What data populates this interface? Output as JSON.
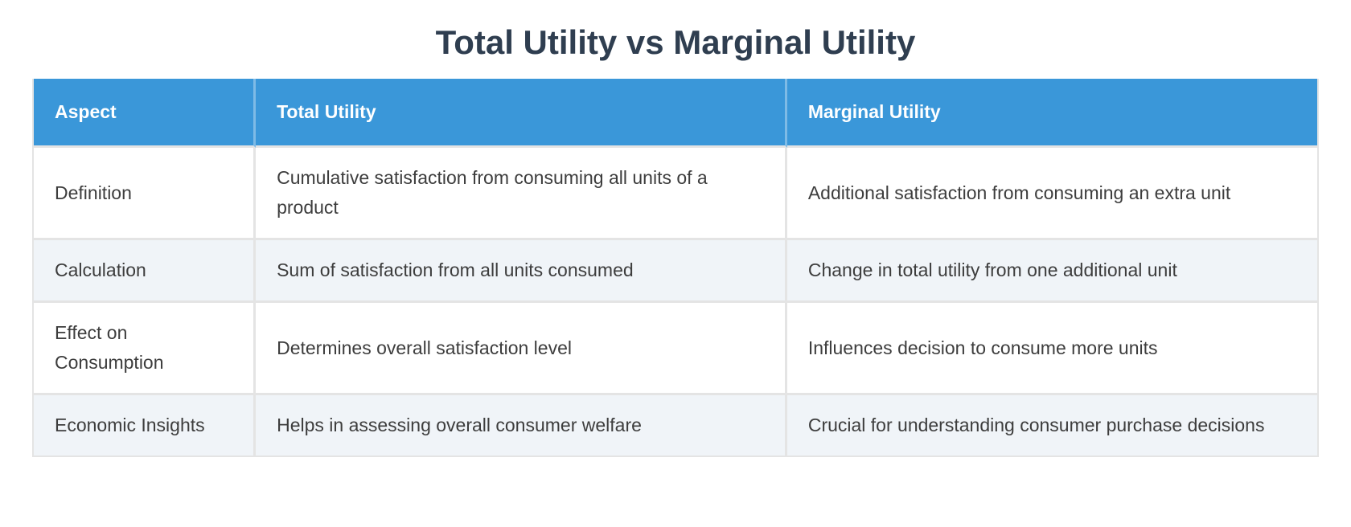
{
  "title": "Total Utility vs Marginal Utility",
  "table": {
    "columns": [
      "Aspect",
      "Total Utility",
      "Marginal Utility"
    ],
    "rows": [
      {
        "aspect": "Definition",
        "total_utility": "Cumulative satisfaction from consuming all units of a product",
        "marginal_utility": "Additional satisfaction from consuming an extra unit"
      },
      {
        "aspect": "Calculation",
        "total_utility": "Sum of satisfaction from all units consumed",
        "marginal_utility": "Change in total utility from one additional unit"
      },
      {
        "aspect": "Effect on Consumption",
        "total_utility": "Determines overall satisfaction level",
        "marginal_utility": "Influences decision to consume more units"
      },
      {
        "aspect": "Economic Insights",
        "total_utility": "Helps in assessing overall consumer welfare",
        "marginal_utility": "Crucial for understanding consumer purchase decisions"
      }
    ]
  },
  "colors": {
    "header_bg": "#3A97D9",
    "header_text": "#FFFFFF",
    "title_text": "#2F3E50",
    "body_text": "#3D3D3D",
    "row_bg": "#FFFFFF",
    "row_alt_bg": "#F0F4F8",
    "border": "#E4E4E4"
  }
}
